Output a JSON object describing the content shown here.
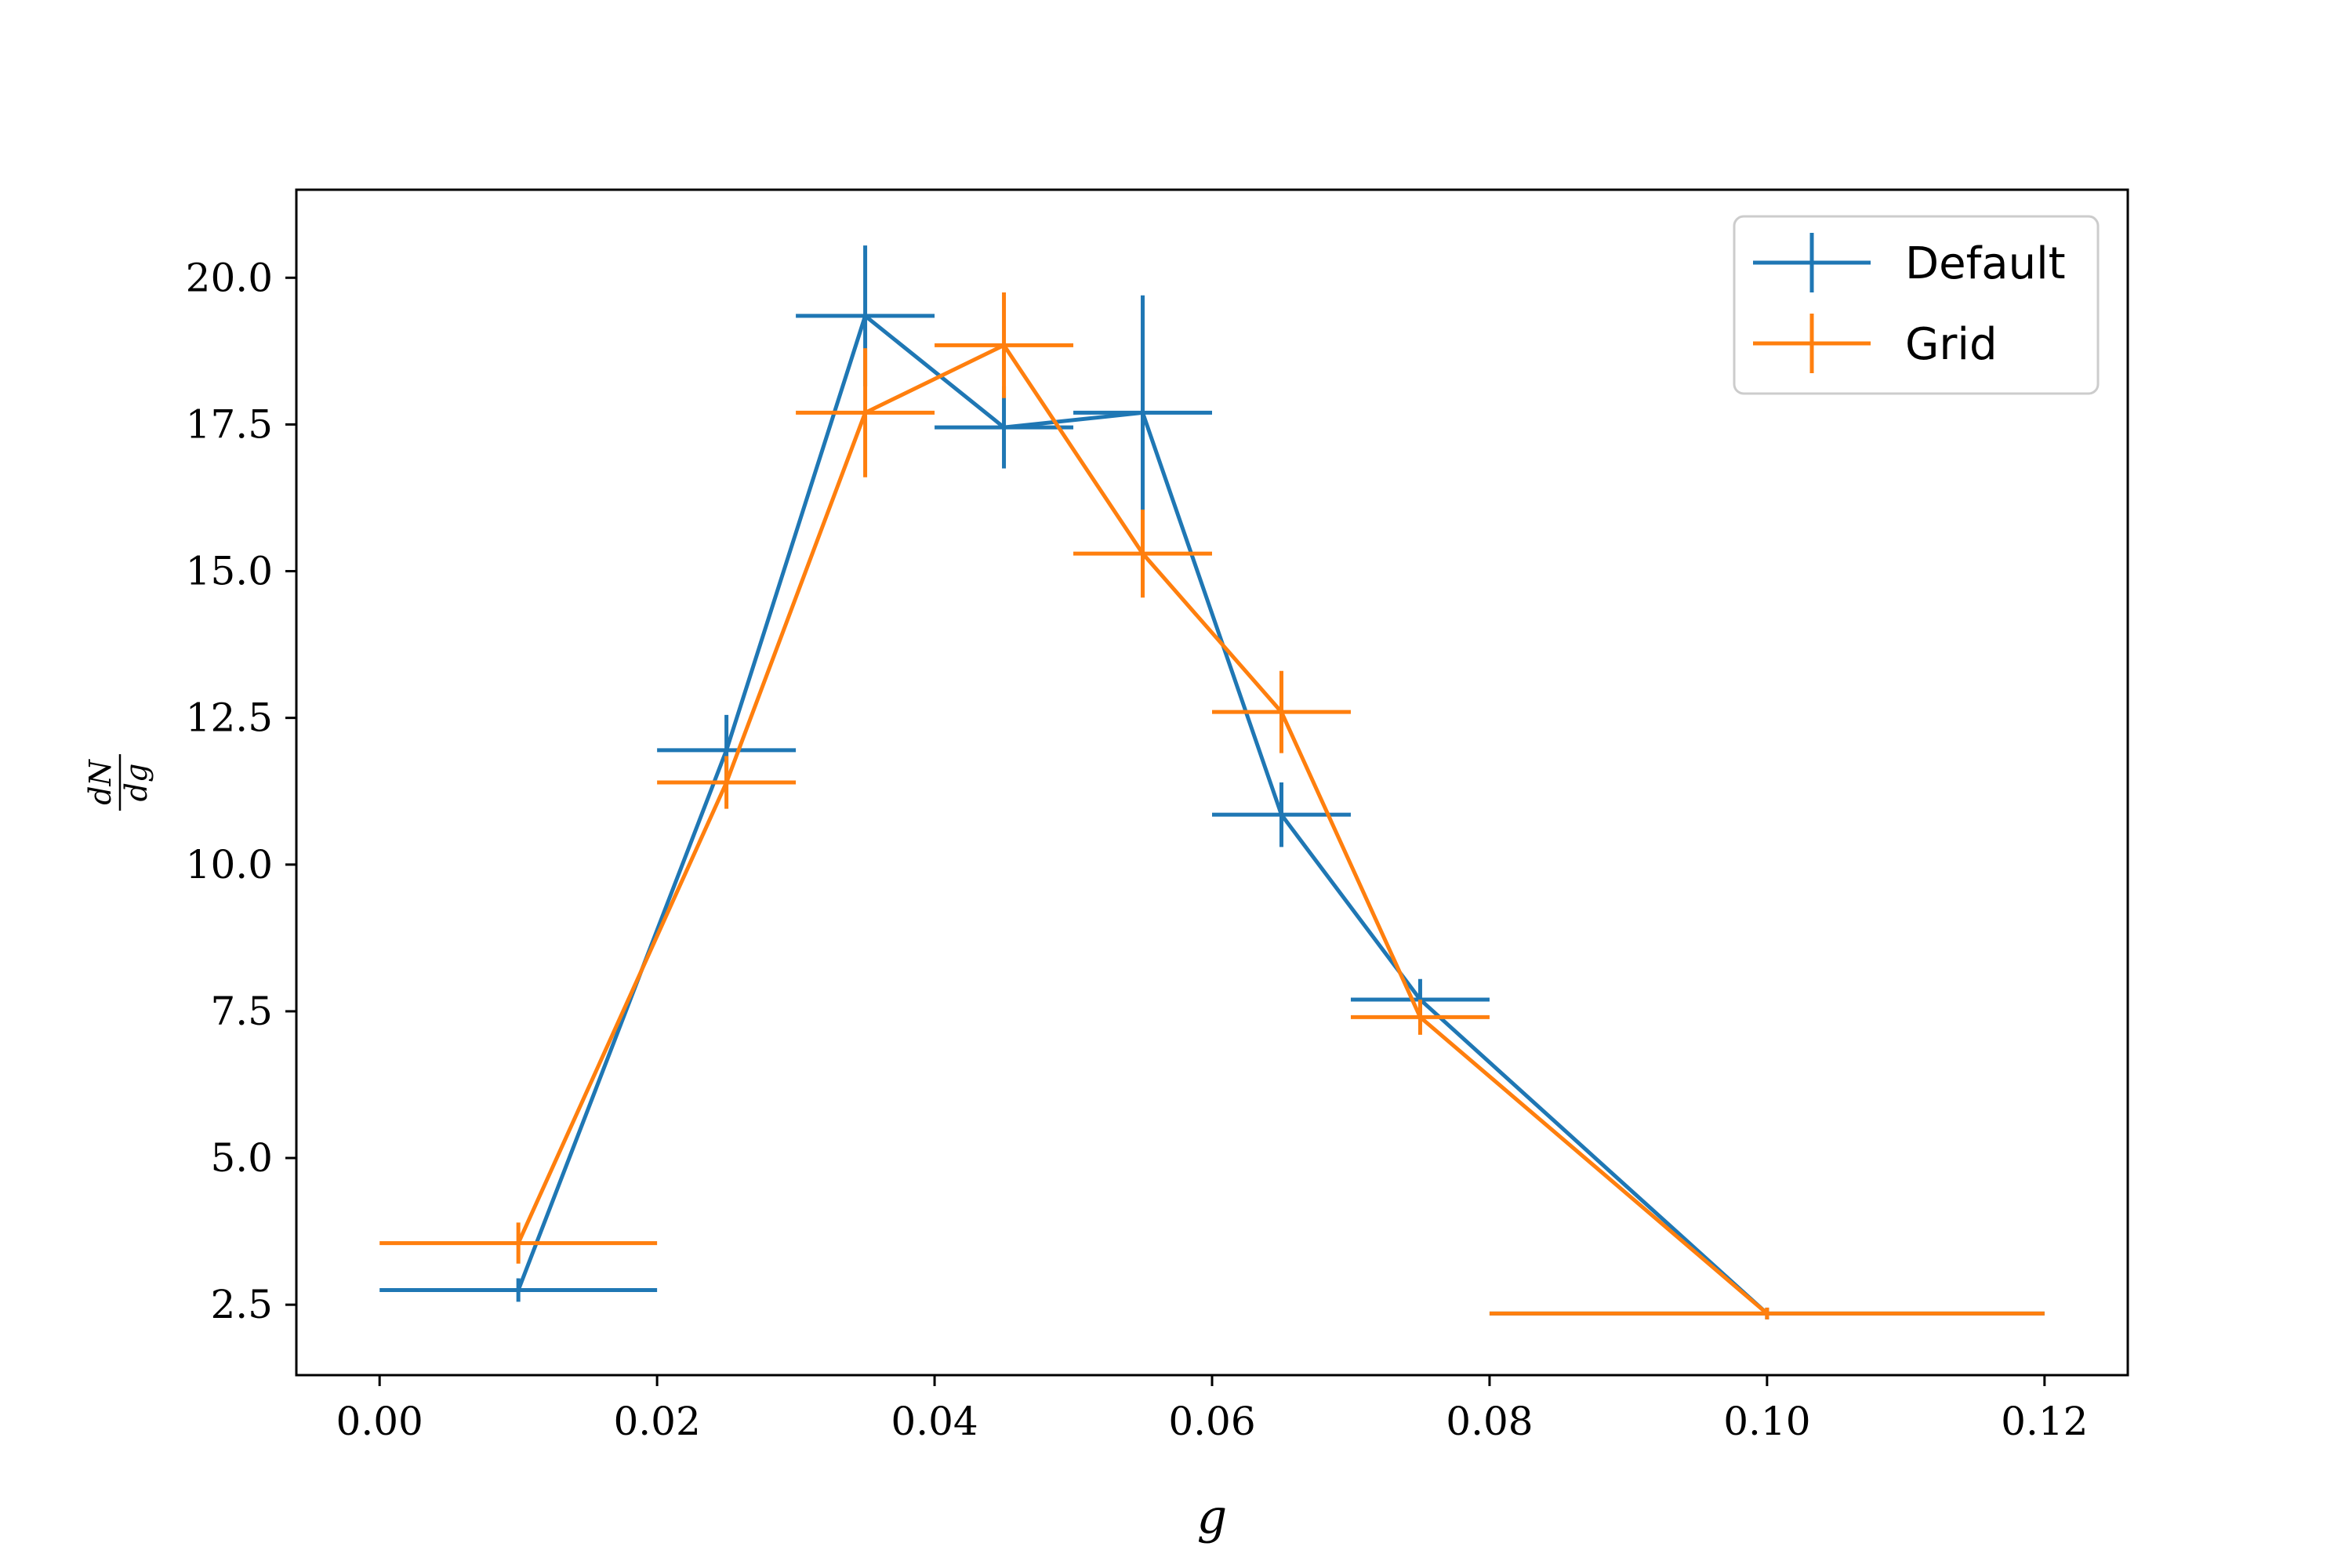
{
  "chart_data": {
    "type": "line",
    "title": "",
    "xlabel": "g",
    "ylabel": {
      "numerator": "dN",
      "denominator": "dg"
    },
    "xlim": [
      -0.006,
      0.126
    ],
    "ylim": [
      1.3,
      21.5
    ],
    "xticks": [
      0.0,
      0.02,
      0.04,
      0.06,
      0.08,
      0.1,
      0.12
    ],
    "xtick_labels": [
      "0.00",
      "0.02",
      "0.04",
      "0.06",
      "0.08",
      "0.10",
      "0.12"
    ],
    "yticks": [
      2.5,
      5.0,
      7.5,
      10.0,
      12.5,
      15.0,
      17.5,
      20.0
    ],
    "ytick_labels": [
      "2.5",
      "5.0",
      "7.5",
      "10.0",
      "12.5",
      "15.0",
      "17.5",
      "20.0"
    ],
    "grid": false,
    "legend_position": "top-right",
    "series": [
      {
        "name": "Default",
        "color": "#1f77b4",
        "points": [
          {
            "x": 0.01,
            "y": 2.75,
            "xerr": 0.01,
            "yerr": 0.2
          },
          {
            "x": 0.025,
            "y": 11.95,
            "xerr": 0.005,
            "yerr": 0.6
          },
          {
            "x": 0.035,
            "y": 19.35,
            "xerr": 0.005,
            "yerr": 1.2
          },
          {
            "x": 0.045,
            "y": 17.45,
            "xerr": 0.005,
            "yerr": 0.7
          },
          {
            "x": 0.055,
            "y": 17.7,
            "xerr": 0.005,
            "yerr": 2.0
          },
          {
            "x": 0.065,
            "y": 10.85,
            "xerr": 0.005,
            "yerr": 0.55
          },
          {
            "x": 0.075,
            "y": 7.7,
            "xerr": 0.005,
            "yerr": 0.35
          },
          {
            "x": 0.1,
            "y": 2.35,
            "xerr": 0.02,
            "yerr": 0.1
          }
        ]
      },
      {
        "name": "Grid",
        "color": "#ff7f0e",
        "points": [
          {
            "x": 0.01,
            "y": 3.55,
            "xerr": 0.01,
            "yerr": 0.35
          },
          {
            "x": 0.025,
            "y": 11.4,
            "xerr": 0.005,
            "yerr": 0.45
          },
          {
            "x": 0.035,
            "y": 17.7,
            "xerr": 0.005,
            "yerr": 1.1
          },
          {
            "x": 0.045,
            "y": 18.85,
            "xerr": 0.005,
            "yerr": 0.9
          },
          {
            "x": 0.055,
            "y": 15.3,
            "xerr": 0.005,
            "yerr": 0.75
          },
          {
            "x": 0.065,
            "y": 12.6,
            "xerr": 0.005,
            "yerr": 0.7
          },
          {
            "x": 0.075,
            "y": 7.4,
            "xerr": 0.005,
            "yerr": 0.3
          },
          {
            "x": 0.1,
            "y": 2.35,
            "xerr": 0.02,
            "yerr": 0.1
          }
        ]
      }
    ]
  }
}
